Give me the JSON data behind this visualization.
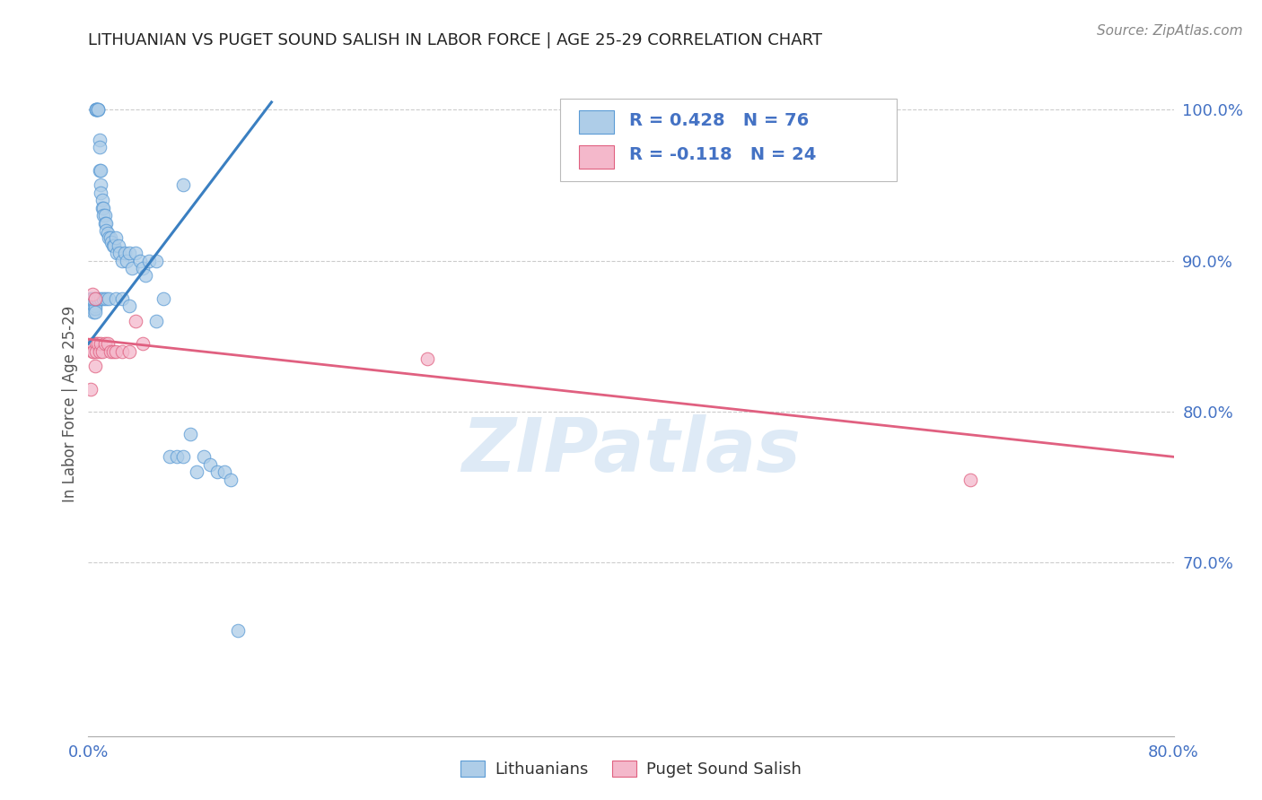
{
  "title": "LITHUANIAN VS PUGET SOUND SALISH IN LABOR FORCE | AGE 25-29 CORRELATION CHART",
  "source": "Source: ZipAtlas.com",
  "ylabel": "In Labor Force | Age 25-29",
  "xlim": [
    0.0,
    0.8
  ],
  "ylim": [
    0.585,
    1.025
  ],
  "xtick_positions": [
    0.0,
    0.1,
    0.2,
    0.3,
    0.4,
    0.5,
    0.6,
    0.7,
    0.8
  ],
  "ytick_positions": [
    0.7,
    0.8,
    0.9,
    1.0
  ],
  "ytick_labels": [
    "70.0%",
    "80.0%",
    "90.0%",
    "100.0%"
  ],
  "blue_color": "#aecde8",
  "blue_edge_color": "#5b9bd5",
  "pink_color": "#f4b8cb",
  "pink_edge_color": "#e06080",
  "blue_line_color": "#3a7fc1",
  "pink_line_color": "#e06080",
  "axis_label_color": "#4472c4",
  "title_color": "#222222",
  "source_color": "#888888",
  "watermark_color": "#c8ddf0",
  "grid_color": "#cccccc",
  "blue_trend_x": [
    0.0,
    0.135
  ],
  "blue_trend_y": [
    0.845,
    1.005
  ],
  "pink_trend_x": [
    0.0,
    0.8
  ],
  "pink_trend_y": [
    0.848,
    0.77
  ],
  "blue_x": [
    0.002,
    0.003,
    0.003,
    0.003,
    0.004,
    0.004,
    0.004,
    0.005,
    0.005,
    0.005,
    0.006,
    0.006,
    0.006,
    0.006,
    0.007,
    0.007,
    0.007,
    0.008,
    0.008,
    0.008,
    0.009,
    0.009,
    0.009,
    0.01,
    0.01,
    0.011,
    0.011,
    0.012,
    0.012,
    0.013,
    0.013,
    0.014,
    0.015,
    0.016,
    0.017,
    0.018,
    0.019,
    0.02,
    0.021,
    0.022,
    0.023,
    0.025,
    0.027,
    0.028,
    0.03,
    0.032,
    0.035,
    0.038,
    0.04,
    0.042,
    0.045,
    0.05,
    0.055,
    0.06,
    0.065,
    0.07,
    0.075,
    0.08,
    0.085,
    0.09,
    0.095,
    0.1,
    0.105,
    0.11,
    0.003,
    0.005,
    0.007,
    0.009,
    0.011,
    0.013,
    0.015,
    0.02,
    0.025,
    0.03,
    0.05,
    0.07
  ],
  "blue_y": [
    0.875,
    0.872,
    0.87,
    0.868,
    0.87,
    0.868,
    0.866,
    0.87,
    0.868,
    0.866,
    1.0,
    1.0,
    1.0,
    1.0,
    1.0,
    1.0,
    1.0,
    0.98,
    0.975,
    0.96,
    0.96,
    0.95,
    0.945,
    0.94,
    0.935,
    0.935,
    0.93,
    0.93,
    0.925,
    0.925,
    0.92,
    0.918,
    0.915,
    0.915,
    0.912,
    0.91,
    0.91,
    0.915,
    0.905,
    0.91,
    0.905,
    0.9,
    0.905,
    0.9,
    0.905,
    0.895,
    0.905,
    0.9,
    0.895,
    0.89,
    0.9,
    0.9,
    0.875,
    0.77,
    0.77,
    0.77,
    0.785,
    0.76,
    0.77,
    0.765,
    0.76,
    0.76,
    0.755,
    0.655,
    0.875,
    0.875,
    0.875,
    0.875,
    0.875,
    0.875,
    0.875,
    0.875,
    0.875,
    0.87,
    0.86,
    0.95
  ],
  "pink_x": [
    0.002,
    0.003,
    0.003,
    0.004,
    0.004,
    0.005,
    0.005,
    0.006,
    0.006,
    0.007,
    0.008,
    0.009,
    0.01,
    0.012,
    0.014,
    0.016,
    0.018,
    0.02,
    0.025,
    0.03,
    0.035,
    0.04,
    0.25,
    0.65
  ],
  "pink_y": [
    0.815,
    0.878,
    0.84,
    0.845,
    0.84,
    0.83,
    0.875,
    0.845,
    0.84,
    0.845,
    0.84,
    0.845,
    0.84,
    0.845,
    0.845,
    0.84,
    0.84,
    0.84,
    0.84,
    0.84,
    0.86,
    0.845,
    0.835,
    0.755
  ],
  "legend_R_blue": "R = 0.428",
  "legend_N_blue": "N = 76",
  "legend_R_pink": "R = -0.118",
  "legend_N_pink": "N = 24",
  "legend_label_blue": "Lithuanians",
  "legend_label_pink": "Puget Sound Salish"
}
